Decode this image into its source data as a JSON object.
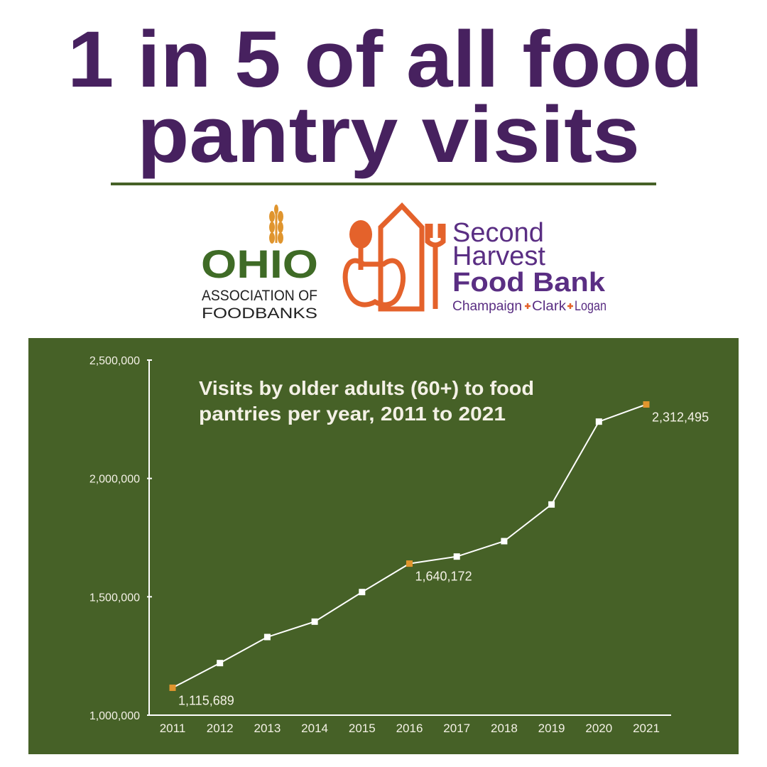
{
  "header": {
    "title": [
      "1 in 5 of all food",
      "pantry visits"
    ]
  },
  "logos": {
    "ohio": {
      "name": "OHIO",
      "subtitle": [
        "ASSOCIATION OF",
        "FOODBANKS"
      ]
    },
    "second_harvest": {
      "name": [
        "Second",
        "Harvest"
      ],
      "bold": "Food Bank",
      "counties": [
        "Champaign",
        "Clark",
        "Logan"
      ]
    }
  },
  "chart_data": {
    "type": "line",
    "title": [
      "Visits by older adults (60+) to food",
      "pantries per year, 2011 to 2021"
    ],
    "categories": [
      "2011",
      "2012",
      "2013",
      "2014",
      "2015",
      "2016",
      "2017",
      "2018",
      "2019",
      "2020",
      "2021"
    ],
    "values": [
      1115689,
      1220000,
      1330000,
      1395000,
      1520000,
      1640172,
      1670000,
      1735000,
      1890000,
      2240000,
      2312495
    ],
    "value_labels": [
      "1,115,689",
      null,
      null,
      null,
      null,
      "1,640,172",
      null,
      null,
      null,
      null,
      "2,312,495"
    ],
    "color": "#ffffff",
    "highlight_color": "#e0952e",
    "background": "#466127",
    "ylim": [
      1000000,
      2500000
    ],
    "yticks": [
      {
        "value": 1000000,
        "label": "1,000,000"
      },
      {
        "value": 1500000,
        "label": "1,500,000"
      },
      {
        "value": 2000000,
        "label": "2,000,000"
      },
      {
        "value": 2500000,
        "label": "2,500,000"
      }
    ],
    "grid": false
  }
}
